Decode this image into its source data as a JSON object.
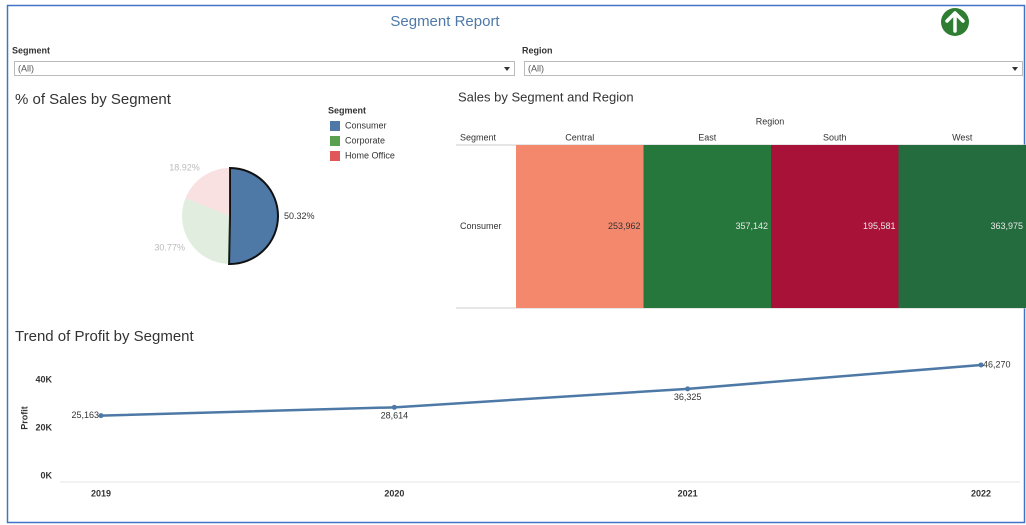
{
  "header": {
    "title": "Segment Report"
  },
  "filters": [
    {
      "label": "Segment",
      "value": "(All)"
    },
    {
      "label": "Region",
      "value": "(All)"
    }
  ],
  "chart_data": [
    {
      "type": "pie",
      "title": "% of Sales by Segment",
      "legend_title": "Segment",
      "categories": [
        "Consumer",
        "Corporate",
        "Home Office"
      ],
      "values": [
        50.32,
        30.77,
        18.92
      ],
      "value_labels": [
        "50.32%",
        "30.77%",
        "18.92%"
      ],
      "colors": [
        "#4e79a7",
        "#59a14f",
        "#e15759"
      ],
      "selected": "Consumer"
    },
    {
      "type": "heatmap",
      "title": "Sales by Segment and Region",
      "row_header": "Segment",
      "column_header": "Region",
      "columns": [
        "Central",
        "East",
        "South",
        "West"
      ],
      "rows": [
        "Consumer"
      ],
      "values": [
        [
          253962,
          357142,
          195581,
          363975
        ]
      ],
      "value_labels": [
        [
          "253,962",
          "357,142",
          "195,581",
          "363,975"
        ]
      ],
      "cell_colors": [
        [
          "#f4886d",
          "#26773c",
          "#a81238",
          "#246b3d"
        ]
      ]
    },
    {
      "type": "line",
      "title": "Trend of Profit by Segment",
      "ylabel": "Profit",
      "x": [
        2019,
        2020,
        2021,
        2022
      ],
      "values": [
        25163,
        28614,
        36325,
        46270
      ],
      "value_labels": [
        "25,163",
        "28,614",
        "36,325",
        "46,270"
      ],
      "xlim": [
        2019,
        2022
      ],
      "ylim": [
        0,
        50000
      ],
      "yticks": [
        {
          "value": 0,
          "label": "0K"
        },
        {
          "value": 20000,
          "label": "20K"
        },
        {
          "value": 40000,
          "label": "40K"
        }
      ],
      "color": "#4e79a7"
    }
  ]
}
